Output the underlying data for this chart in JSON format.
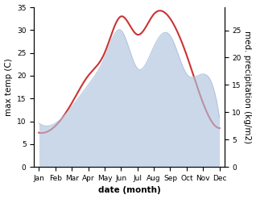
{
  "months": [
    "Jan",
    "Feb",
    "Mar",
    "Apr",
    "May",
    "Jun",
    "Jul",
    "Aug",
    "Sep",
    "Oct",
    "Nov",
    "Dec"
  ],
  "temperature": [
    7.5,
    9.0,
    14.0,
    20.0,
    25.0,
    33.0,
    29.0,
    33.5,
    32.5,
    24.5,
    14.0,
    8.5
  ],
  "precipitation": [
    8.0,
    8.0,
    11.0,
    15.0,
    20.0,
    25.0,
    18.0,
    22.0,
    24.0,
    17.0,
    17.0,
    9.0
  ],
  "temp_color": "#cc3333",
  "precip_fill_color": "#b0c4de",
  "precip_line_color": "#8899bb",
  "precip_alpha": 0.65,
  "ylabel_left": "max temp (C)",
  "ylabel_right": "med. precipitation (kg/m2)",
  "xlabel": "date (month)",
  "ylim_left": [
    0,
    35
  ],
  "ylim_right": [
    0,
    29.2
  ],
  "yticks_left": [
    0,
    5,
    10,
    15,
    20,
    25,
    30,
    35
  ],
  "yticks_right": [
    0,
    5,
    10,
    15,
    20,
    25
  ],
  "background_color": "#ffffff",
  "label_fontsize": 7.5,
  "tick_fontsize": 6.5
}
